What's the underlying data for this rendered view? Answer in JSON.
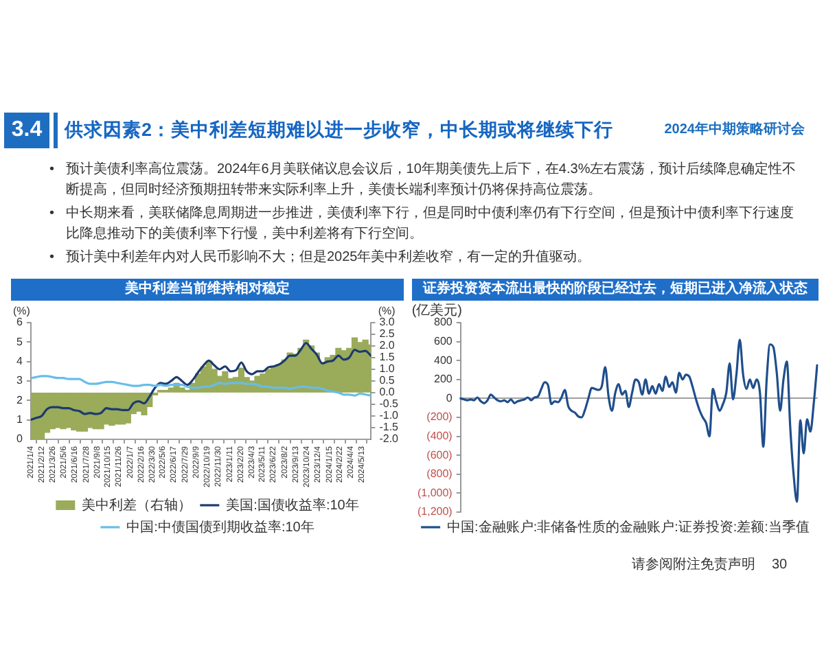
{
  "chart_data": [
    {
      "type": "other",
      "title": "供求因素2：美中利差短期难以进一步收窄，中长期或将继续下行",
      "subtitle": "2024年中期策略研讨会",
      "annotations": [
        "3.4",
        "•预计美债利率高位震荡。2024年6月美联储议息会议后，10年期美债先上后下，在4.3%左右震荡，预计后续降息确定性不断提高，但同时经济预期扭转带来实际利率上升，美债长端利率预计仍将保持高位震荡。",
        "•中长期来看，美联储降息周期进一步推进，美债利率下行，但是同时中债利率仍有下行空间，但是预计中债利率下行速度比降息推动下的美债利率下行慢，美中利差将有下行空间。",
        "•预计美中利差年内对人民币影响不大；但是2025年美中利差收窄，有一定的升值驱动。",
        "请参阅附注免责声明",
        "30"
      ]
    },
    {
      "type": "bar",
      "title": "美中利差当前维持相对稳定",
      "ylabel": "(%)",
      "y2label": "(%)",
      "x": [
        "2021-01-04",
        "2021-01-24",
        "2021-02-13",
        "2021-03-05",
        "2021-03-25",
        "2021-04-14",
        "2021-05-04",
        "2021-05-24",
        "2021-06-13",
        "2021-07-03",
        "2021-07-23",
        "2021-08-12",
        "2021-09-01",
        "2021-09-21",
        "2021-10-11",
        "2021-10-31",
        "2021-11-20",
        "2021-12-10",
        "2021-12-30",
        "2022-01-19",
        "2022-02-08",
        "2022-02-28",
        "2022-03-20",
        "2022-04-09",
        "2022-04-29",
        "2022-05-19",
        "2022-06-08",
        "2022-06-28",
        "2022-07-18",
        "2022-08-07",
        "2022-08-27",
        "2022-09-16",
        "2022-10-06",
        "2022-10-26",
        "2022-11-15",
        "2022-12-05",
        "2022-12-25",
        "2023-01-14",
        "2023-02-03",
        "2023-02-23",
        "2023-03-15",
        "2023-04-04",
        "2023-04-24",
        "2023-05-14",
        "2023-06-03",
        "2023-06-23",
        "2023-07-13",
        "2023-08-02",
        "2023-08-22",
        "2023-09-11",
        "2023-10-01",
        "2023-10-21",
        "2023-11-10",
        "2023-11-30",
        "2023-12-20",
        "2024-01-09",
        "2024-01-29",
        "2024-02-18",
        "2024-03-09",
        "2024-03-29",
        "2024-04-18",
        "2024-05-08",
        "2024-05-28",
        "2024-06-17"
      ],
      "series": [
        {
          "name": "美中利差（右轴）",
          "type": "bar",
          "axis": "y2",
          "color": "#9aab5a",
          "values": [
            -2.0,
            -2.0,
            -2.0,
            -1.7,
            -1.55,
            -1.5,
            -1.55,
            -1.5,
            -1.6,
            -1.65,
            -1.65,
            -1.5,
            -1.55,
            -1.55,
            -1.35,
            -1.4,
            -1.35,
            -1.35,
            -1.3,
            -0.9,
            -0.8,
            -0.95,
            -0.6,
            -0.1,
            0.1,
            0.1,
            0.2,
            0.4,
            0.2,
            0.1,
            0.4,
            0.8,
            1.1,
            1.35,
            1.0,
            0.7,
            0.9,
            0.6,
            0.65,
            1.05,
            0.65,
            0.5,
            0.7,
            0.8,
            1.0,
            1.1,
            1.2,
            1.4,
            1.7,
            1.65,
            1.9,
            2.25,
            2.0,
            1.7,
            1.3,
            1.5,
            1.6,
            1.9,
            1.8,
            1.9,
            2.35,
            2.15,
            2.25,
            2.05
          ]
        },
        {
          "name": "美国:国债收益率:10年",
          "type": "line",
          "color": "#1c3a6e",
          "values": [
            1.0,
            1.1,
            1.2,
            1.55,
            1.65,
            1.65,
            1.6,
            1.6,
            1.5,
            1.45,
            1.3,
            1.35,
            1.3,
            1.35,
            1.6,
            1.55,
            1.55,
            1.5,
            1.5,
            1.85,
            1.95,
            1.85,
            2.2,
            2.65,
            2.9,
            2.85,
            3.0,
            3.2,
            3.0,
            2.8,
            3.05,
            3.45,
            3.8,
            4.05,
            3.8,
            3.6,
            3.75,
            3.5,
            3.55,
            3.95,
            3.5,
            3.35,
            3.5,
            3.5,
            3.7,
            3.75,
            3.85,
            4.05,
            4.3,
            4.3,
            4.6,
            4.95,
            4.65,
            4.35,
            3.9,
            4.0,
            4.05,
            4.3,
            4.1,
            4.2,
            4.6,
            4.5,
            4.55,
            4.3
          ]
        },
        {
          "name": "中国:中债国债到期收益率:10年",
          "type": "line",
          "color": "#68bde8",
          "values": [
            3.15,
            3.2,
            3.25,
            3.25,
            3.2,
            3.15,
            3.15,
            3.1,
            3.1,
            3.1,
            2.95,
            2.85,
            2.85,
            2.9,
            2.95,
            2.95,
            2.9,
            2.85,
            2.8,
            2.75,
            2.75,
            2.8,
            2.8,
            2.75,
            2.8,
            2.75,
            2.8,
            2.8,
            2.8,
            2.7,
            2.65,
            2.65,
            2.7,
            2.7,
            2.8,
            2.9,
            2.85,
            2.9,
            2.9,
            2.9,
            2.85,
            2.85,
            2.8,
            2.7,
            2.7,
            2.65,
            2.65,
            2.65,
            2.6,
            2.65,
            2.7,
            2.7,
            2.65,
            2.65,
            2.6,
            2.5,
            2.45,
            2.4,
            2.3,
            2.3,
            2.25,
            2.35,
            2.3,
            2.25
          ]
        }
      ],
      "xlim": [
        "2021-01-04",
        "2024-06-18"
      ],
      "xticks": [
        {
          "value": "2021-01-04",
          "label": "2021/1/4"
        },
        {
          "value": "2021-02-12",
          "label": "2021/2/12"
        },
        {
          "value": "2021-03-26",
          "label": "2021/3/26"
        },
        {
          "value": "2021-05-06",
          "label": "2021/5/6"
        },
        {
          "value": "2021-06-16",
          "label": "2021/6/16"
        },
        {
          "value": "2021-07-28",
          "label": "2021/7/28"
        },
        {
          "value": "2021-09-08",
          "label": "2021/9/8"
        },
        {
          "value": "2021-10-15",
          "label": "2021/10/15"
        },
        {
          "value": "2021-11-26",
          "label": "2021/11/26"
        },
        {
          "value": "2022-01-07",
          "label": "2022/1/7"
        },
        {
          "value": "2022-02-16",
          "label": "2022/2/16"
        },
        {
          "value": "2022-03-30",
          "label": "2022/3/30"
        },
        {
          "value": "2022-05-06",
          "label": "2022/5/6"
        },
        {
          "value": "2022-06-17",
          "label": "2022/6/17"
        },
        {
          "value": "2022-07-29",
          "label": "2022/7/29"
        },
        {
          "value": "2022-09-09",
          "label": "2022/9/9"
        },
        {
          "value": "2022-10-19",
          "label": "2022/10/19"
        },
        {
          "value": "2022-11-30",
          "label": "2022/11/30"
        },
        {
          "value": "2023-01-11",
          "label": "2023/1/11"
        },
        {
          "value": "2023-02-20",
          "label": "2023/2/20"
        },
        {
          "value": "2023-04-03",
          "label": "2023/4/3"
        },
        {
          "value": "2023-05-11",
          "label": "2023/5/11"
        },
        {
          "value": "2023-06-22",
          "label": "2023/6/22"
        },
        {
          "value": "2023-08-02",
          "label": "2023/8/2"
        },
        {
          "value": "2023-09-13",
          "label": "2023/9/13"
        },
        {
          "value": "2023-10-24",
          "label": "2023/10/24"
        },
        {
          "value": "2023-12-04",
          "label": "2023/12/4"
        },
        {
          "value": "2024-01-15",
          "label": "2024/1/15"
        },
        {
          "value": "2024-02-22",
          "label": "2024/2/22"
        },
        {
          "value": "2024-04-04",
          "label": "2024/4/4"
        },
        {
          "value": "2024-05-13",
          "label": "2024/5/13"
        }
      ],
      "ylim": [
        0,
        6
      ],
      "yticks": [
        0,
        1,
        2,
        3,
        4,
        5,
        6
      ],
      "y2lim": [
        -2,
        3
      ],
      "y2ticks": [
        {
          "value": -2,
          "label": "-2.0"
        },
        -1.5,
        {
          "value": -1,
          "label": "-1.0"
        },
        -0.5,
        {
          "value": 0,
          "label": "0.0"
        },
        0.5,
        {
          "value": 1,
          "label": "1.0"
        },
        1.5,
        {
          "value": 2,
          "label": "2.0"
        },
        2.5,
        {
          "value": 3,
          "label": "3.0"
        }
      ],
      "legend": "bottom",
      "marker": "none"
    },
    {
      "type": "line",
      "title": "证券投资资本流出最快的阶段已经过去，短期已进入净流入状态",
      "ylabel": "(亿美元)",
      "categories": [
        null,
        null,
        null,
        null,
        null,
        null,
        null,
        null,
        null,
        null,
        null,
        null,
        null,
        null,
        null,
        null,
        null,
        null,
        null,
        null,
        null,
        null,
        null,
        null,
        null,
        null,
        null,
        null,
        null,
        null,
        null,
        null,
        null,
        null,
        null,
        null,
        null,
        null,
        null,
        null,
        null,
        null,
        null,
        null,
        null,
        null,
        null,
        null,
        null,
        null,
        null,
        null,
        null,
        null,
        null,
        null,
        null,
        null,
        null,
        null,
        null,
        null,
        null,
        null,
        null,
        null,
        null,
        null,
        null,
        null,
        null,
        null,
        null,
        null,
        null,
        null,
        null,
        null,
        null,
        null,
        null,
        null,
        null,
        null,
        null,
        null,
        null,
        null,
        null,
        null,
        null,
        null,
        null,
        null,
        null,
        null,
        null,
        null,
        null,
        null,
        null,
        null,
        null,
        null,
        null,
        null,
        null
      ],
      "series": [
        {
          "name": "中国:金融账户:非储备性质的金融账户:证券投资:差额:当季值",
          "color": "#1f4e8c",
          "values": [
            0,
            -10,
            -20,
            -10,
            -20,
            10,
            -30,
            -50,
            -20,
            40,
            10,
            -20,
            -30,
            -20,
            -40,
            -10,
            -50,
            -30,
            -20,
            -10,
            10,
            -20,
            10,
            20,
            100,
            170,
            140,
            -60,
            -30,
            -40,
            10,
            90,
            -80,
            -130,
            -150,
            -190,
            -200,
            -120,
            0,
            110,
            100,
            90,
            130,
            330,
            20,
            -130,
            60,
            150,
            40,
            80,
            -90,
            60,
            200,
            170,
            40,
            200,
            50,
            130,
            50,
            150,
            80,
            230,
            120,
            170,
            60,
            270,
            200,
            250,
            230,
            120,
            -10,
            -120,
            -200,
            -260,
            -400,
            100,
            -30,
            -130,
            -60,
            60,
            370,
            -10,
            250,
            620,
            250,
            100,
            200,
            110,
            200,
            60,
            -510,
            200,
            570,
            540,
            270,
            -130,
            200,
            390,
            -300,
            -800,
            -1090,
            -230,
            -580,
            -220,
            -350,
            -50,
            350
          ]
        }
      ],
      "ylim": [
        -1200,
        800
      ],
      "yticks": [
        {
          "value": -1200,
          "label": "(1,200)"
        },
        {
          "value": -1000,
          "label": "(1,000)"
        },
        {
          "value": -800,
          "label": "(800)"
        },
        {
          "value": -600,
          "label": "(600)"
        },
        {
          "value": -400,
          "label": "(400)"
        },
        {
          "value": -200,
          "label": "(200)"
        },
        0,
        200,
        400,
        600,
        800
      ],
      "tick_labels": "y",
      "legend": "bottom",
      "marker": "none"
    }
  ]
}
